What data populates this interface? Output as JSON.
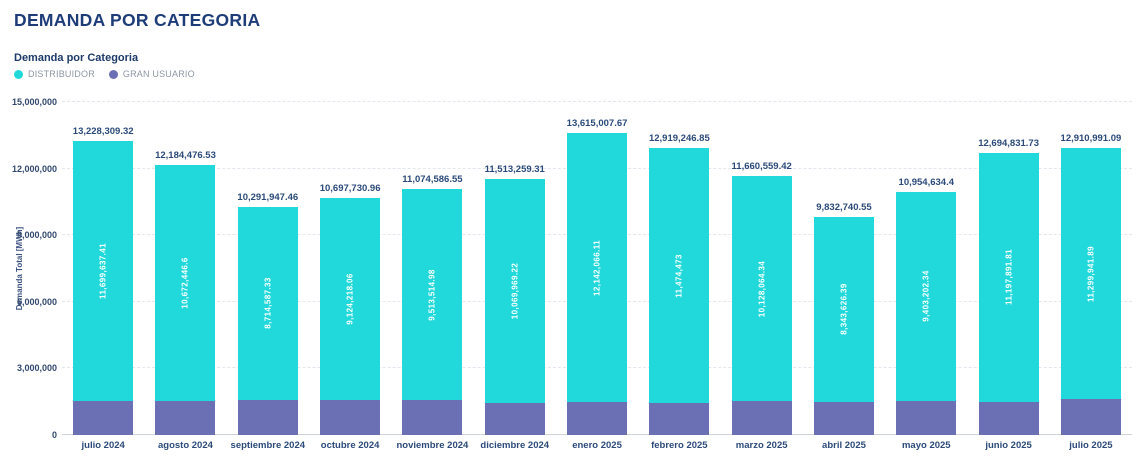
{
  "page": {
    "title": "DEMANDA POR CATEGORIA"
  },
  "chart": {
    "subtitle": "Demanda por Categoria",
    "ylabel": "Demanda Total  [MWh]"
  },
  "colors": {
    "distribuidor": "#21d8db",
    "gran_usuario": "#6b6fb4",
    "title_navy": "#1d3c78",
    "axis_label": "#2b4a7a"
  },
  "chart_data": {
    "type": "bar",
    "stacked": true,
    "title": "Demanda por Categoria",
    "xlabel": "",
    "ylabel": "Demanda Total [MWh]",
    "ylim": [
      0,
      15000000
    ],
    "grid": "horizontal-dashed",
    "legend_position": "top-left",
    "yticks": [
      {
        "value": 0,
        "label": "0"
      },
      {
        "value": 3000000,
        "label": "3,000,000"
      },
      {
        "value": 6000000,
        "label": "6,000,000"
      },
      {
        "value": 9000000,
        "label": "9,000,000"
      },
      {
        "value": 12000000,
        "label": "12,000,000"
      },
      {
        "value": 15000000,
        "label": "15,000,000"
      }
    ],
    "categories": [
      "julio 2024",
      "agosto 2024",
      "septiembre 2024",
      "octubre 2024",
      "noviembre 2024",
      "diciembre 2024",
      "enero 2025",
      "febrero 2025",
      "marzo 2025",
      "abril 2025",
      "mayo 2025",
      "junio 2025",
      "julio 2025"
    ],
    "series": [
      {
        "name": "DISTRIBUIDOR",
        "color": "#21d8db",
        "values": [
          11699637.41,
          10672446.6,
          8714587.33,
          9124218.06,
          9513514.98,
          10069969.22,
          12142066.11,
          11474473,
          10128064.34,
          8343626.39,
          9403202.34,
          11197891.81,
          11299941.89
        ],
        "labels": [
          "11,699,637.41",
          "10,672,446.6",
          "8,714,587.33",
          "9,124,218.06",
          "9,513,514.98",
          "10,069,969.22",
          "12,142,066.11",
          "11,474,473",
          "10,128,064.34",
          "8,343,626.39",
          "9,403,202.34",
          "11,197,891.81",
          "11,299,941.89"
        ]
      },
      {
        "name": "GRAN USUARIO",
        "color": "#6b6fb4",
        "values": [
          1528671.91,
          1512029.93,
          1577360.13,
          1573512.9,
          1561071.57,
          1443290.09,
          1472941.56,
          1444773.85,
          1532495.08,
          1489114.16,
          1551432.06,
          1496939.92,
          1611049.2
        ]
      }
    ],
    "totals": [
      "13,228,309.32",
      "12,184,476.53",
      "10,291,947.46",
      "10,697,730.96",
      "11,074,586.55",
      "11,513,259.31",
      "13,615,007.67",
      "12,919,246.85",
      "11,660,559.42",
      "9,832,740.55",
      "10,954,634.4",
      "12,694,831.73",
      "12,910,991.09"
    ]
  }
}
